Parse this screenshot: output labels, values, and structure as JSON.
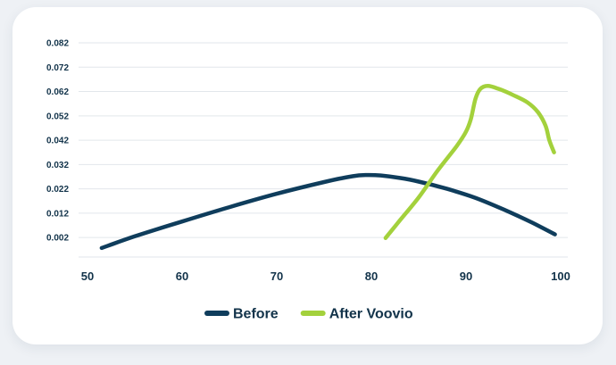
{
  "chart_data": {
    "type": "line",
    "title": "",
    "xlabel": "",
    "ylabel": "",
    "xlim": [
      50,
      100
    ],
    "ylim": [
      -0.006,
      0.082
    ],
    "x_ticks": [
      "50",
      "60",
      "70",
      "80",
      "90",
      "100"
    ],
    "y_ticks": [
      "0.082",
      "0.072",
      "0.062",
      "0.052",
      "0.042",
      "0.032",
      "0.022",
      "0.012",
      "0.002"
    ],
    "grid": "horizontal",
    "legend_position": "bottom-center",
    "series": [
      {
        "name": "Before",
        "color": "#0f3d5c",
        "points": [
          [
            51.5,
            -0.0023
          ],
          [
            55,
            0.0025
          ],
          [
            60,
            0.0086
          ],
          [
            65,
            0.0145
          ],
          [
            70,
            0.02
          ],
          [
            75,
            0.0248
          ],
          [
            78,
            0.0272
          ],
          [
            79.5,
            0.0277
          ],
          [
            81,
            0.0275
          ],
          [
            83,
            0.0265
          ],
          [
            85,
            0.025
          ],
          [
            88,
            0.022
          ],
          [
            91,
            0.0183
          ],
          [
            94,
            0.0135
          ],
          [
            97,
            0.0081
          ],
          [
            99.4,
            0.0033
          ]
        ]
      },
      {
        "name": "After Voovio",
        "color": "#a3d13c",
        "points": [
          [
            81.5,
            0.0018
          ],
          [
            83,
            0.009
          ],
          [
            85,
            0.0185
          ],
          [
            87,
            0.0295
          ],
          [
            89,
            0.0395
          ],
          [
            90,
            0.0455
          ],
          [
            90.5,
            0.0505
          ],
          [
            91,
            0.059
          ],
          [
            91.5,
            0.063
          ],
          [
            92.3,
            0.0643
          ],
          [
            93.5,
            0.063
          ],
          [
            95,
            0.0605
          ],
          [
            96.5,
            0.0575
          ],
          [
            97.6,
            0.0535
          ],
          [
            98.4,
            0.048
          ],
          [
            98.8,
            0.042
          ],
          [
            99.3,
            0.037
          ]
        ]
      }
    ]
  }
}
